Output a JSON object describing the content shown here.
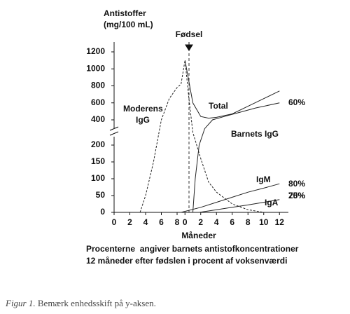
{
  "chart_data": {
    "type": "line",
    "ylabel": [
      "Antistoffer",
      "(mg/100 mL)"
    ],
    "xlabel": "Måneder",
    "birth_label": "Fødsel",
    "caption": [
      "Procenterne  angiver barnets antistofkoncentrationer",
      "12 måneder efter fødslen i procent af voksenværdi"
    ],
    "figure_caption": [
      "Figur 1.",
      "Bemærk enhedsskift på y-aksen."
    ],
    "xlim": [
      -9,
      12
    ],
    "xticks": [
      {
        "value": -9,
        "label": "0"
      },
      {
        "value": -7,
        "label": "2"
      },
      {
        "value": -5,
        "label": "4"
      },
      {
        "value": -3,
        "label": "6"
      },
      {
        "value": -1,
        "label": "8"
      },
      0,
      2,
      4,
      6,
      8,
      10,
      12
    ],
    "ylim": [
      0,
      1200
    ],
    "y_break": [
      200,
      400
    ],
    "yticks": [
      0,
      50,
      100,
      150,
      200,
      400,
      600,
      800,
      1000,
      1200
    ],
    "series": [
      {
        "name": "Moderens IgG",
        "color": "#222",
        "style": "dashed",
        "x": [
          -5.7,
          -5,
          -4,
          -3,
          -2,
          -1,
          -0.5,
          0,
          0.5,
          1,
          2,
          3,
          4,
          6,
          8,
          10
        ],
        "values": [
          0,
          50,
          150,
          400,
          650,
          780,
          820,
          1100,
          650,
          300,
          160,
          90,
          60,
          25,
          8,
          0
        ]
      },
      {
        "name": "Total",
        "color": "#222",
        "style": "solid",
        "end_label": "60%",
        "x": [
          0,
          1,
          2,
          3,
          4,
          6,
          8,
          10,
          12
        ],
        "values": [
          1100,
          600,
          440,
          420,
          430,
          470,
          560,
          650,
          740
        ]
      },
      {
        "name": "Barnets IgG",
        "color": "#222",
        "style": "solid",
        "end_label": "80%",
        "x": [
          1,
          1.3,
          1.8,
          2.5,
          3.5,
          5,
          7,
          9,
          12
        ],
        "values": [
          0,
          100,
          200,
          330,
          400,
          440,
          490,
          540,
          600
        ]
      },
      {
        "name": "IgM",
        "color": "#222",
        "style": "solid",
        "end_label": "75%",
        "x": [
          -0.5,
          2,
          4,
          6,
          8,
          10,
          12
        ],
        "values": [
          0,
          15,
          30,
          45,
          60,
          72,
          85
        ]
      },
      {
        "name": "IgA",
        "color": "#222",
        "style": "solid",
        "end_label": "20%",
        "x": [
          1.8,
          4,
          6,
          8,
          10,
          12
        ],
        "values": [
          0,
          8,
          15,
          22,
          30,
          38
        ]
      }
    ]
  }
}
